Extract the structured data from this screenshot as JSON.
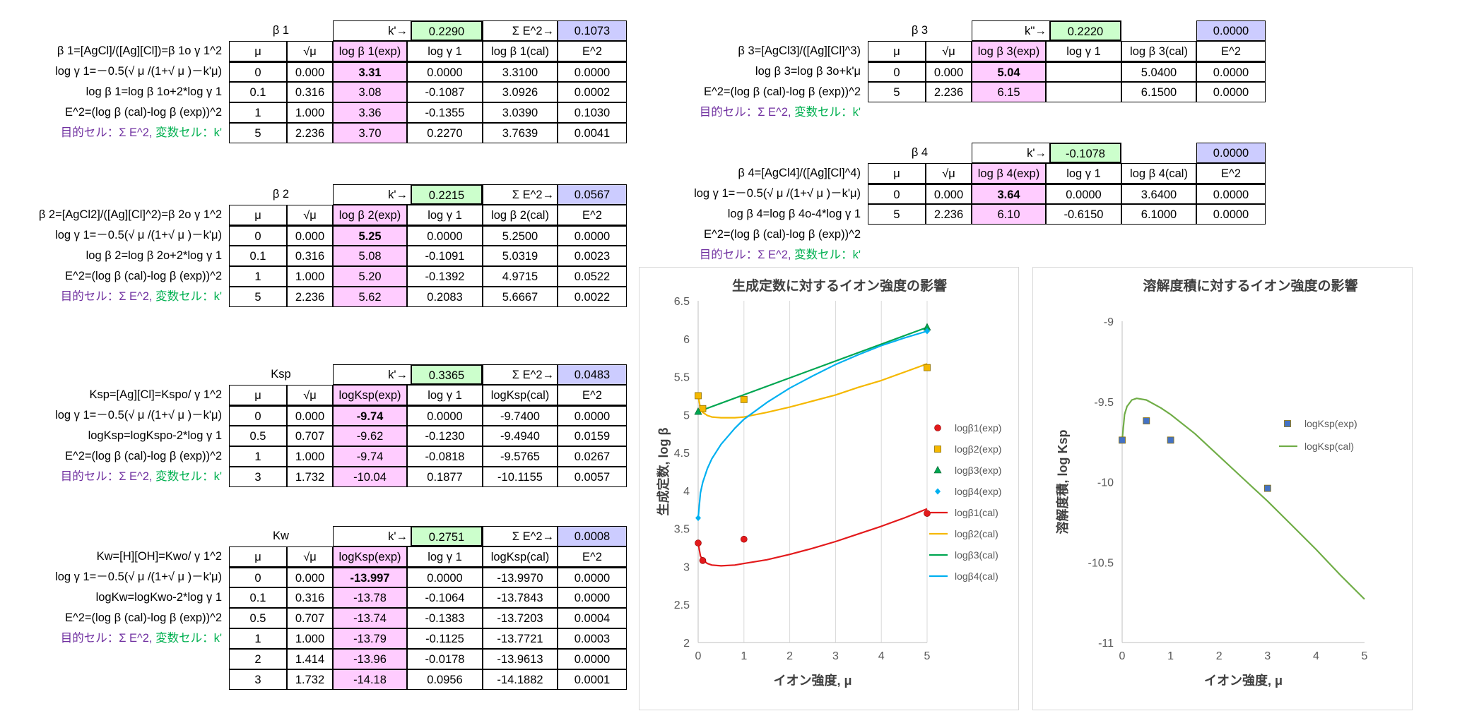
{
  "blocks": [
    {
      "id": "b1",
      "title": "β 1",
      "kprime_label": "k'→",
      "kprime_value": "0.2290",
      "sum_label": "Σ E^2→",
      "sum_value": "0.1073",
      "headers": [
        "μ",
        "√μ",
        "log β 1(exp)",
        "log γ 1",
        "log β 1(cal)",
        "E^2"
      ],
      "left_labels": [
        "β 1=[AgCl]/([Ag][Cl])=β 1o γ 1^2",
        "log γ 1=－0.5(√ μ /(1+√ μ )－k'μ)",
        "log β 1=log β 1o+2*log γ 1",
        "E^2=(log β (cal)-log β (exp))^2",
        "目的セル：Σ E^2, 変数セル：k'"
      ],
      "rows": [
        [
          "0",
          "0.000",
          "3.31",
          "0.0000",
          "3.3100",
          "0.0000"
        ],
        [
          "0.1",
          "0.316",
          "3.08",
          "-0.1087",
          "3.0926",
          "0.0002"
        ],
        [
          "1",
          "1.000",
          "3.36",
          "-0.1355",
          "3.0390",
          "0.1030"
        ],
        [
          "5",
          "2.236",
          "3.70",
          "0.2270",
          "3.7639",
          "0.0041"
        ]
      ]
    },
    {
      "id": "b2",
      "title": "β 2",
      "kprime_label": "k'→",
      "kprime_value": "0.2215",
      "sum_label": "Σ E^2→",
      "sum_value": "0.0567",
      "headers": [
        "μ",
        "√μ",
        "log β 2(exp)",
        "log γ 1",
        "log β 2(cal)",
        "E^2"
      ],
      "left_labels": [
        "β 2=[AgCl2]/([Ag][Cl]^2)=β 2o γ 1^2",
        "log γ 1=－0.5(√ μ /(1+√ μ )－k'μ)",
        "log β 2=log β 2o+2*log γ 1",
        "E^2=(log β (cal)-log β (exp))^2",
        "目的セル：Σ E^2, 変数セル：k'"
      ],
      "rows": [
        [
          "0",
          "0.000",
          "5.25",
          "0.0000",
          "5.2500",
          "0.0000"
        ],
        [
          "0.1",
          "0.316",
          "5.08",
          "-0.1091",
          "5.0319",
          "0.0023"
        ],
        [
          "1",
          "1.000",
          "5.20",
          "-0.1392",
          "4.9715",
          "0.0522"
        ],
        [
          "5",
          "2.236",
          "5.62",
          "0.2083",
          "5.6667",
          "0.0022"
        ]
      ]
    },
    {
      "id": "ksp",
      "title": "Ksp",
      "kprime_label": "k'→",
      "kprime_value": "0.3365",
      "sum_label": "Σ E^2→",
      "sum_value": "0.0483",
      "headers": [
        "μ",
        "√μ",
        "logKsp(exp)",
        "log γ 1",
        "logKsp(cal)",
        "E^2"
      ],
      "left_labels": [
        "Ksp=[Ag][Cl]=Kspo/ γ 1^2",
        "log γ 1=－0.5(√ μ /(1+√ μ )－k'μ)",
        "logKsp=logKspo-2*log γ 1",
        "E^2=(log β (cal)-log β (exp))^2",
        "目的セル：Σ E^2, 変数セル：k'"
      ],
      "rows": [
        [
          "0",
          "0.000",
          "-9.74",
          "0.0000",
          "-9.7400",
          "0.0000"
        ],
        [
          "0.5",
          "0.707",
          "-9.62",
          "-0.1230",
          "-9.4940",
          "0.0159"
        ],
        [
          "1",
          "1.000",
          "-9.74",
          "-0.0818",
          "-9.5765",
          "0.0267"
        ],
        [
          "3",
          "1.732",
          "-10.04",
          "0.1877",
          "-10.1155",
          "0.0057"
        ]
      ]
    },
    {
      "id": "kw",
      "title": "Kw",
      "kprime_label": "k'→",
      "kprime_value": "0.2751",
      "sum_label": "Σ E^2→",
      "sum_value": "0.0008",
      "headers": [
        "μ",
        "√μ",
        "logKsp(exp)",
        "log γ 1",
        "logKsp(cal)",
        "E^2"
      ],
      "left_labels": [
        "Kw=[H][OH]=Kwo/ γ 1^2",
        "log γ 1=－0.5(√ μ /(1+√ μ )－k'μ)",
        "logKw=logKwo-2*log γ 1",
        "E^2=(log β (cal)-log β (exp))^2",
        "目的セル：Σ E^2, 変数セル：k'"
      ],
      "rows": [
        [
          "0",
          "0.000",
          "-13.997",
          "0.0000",
          "-13.9970",
          "0.0000"
        ],
        [
          "0.1",
          "0.316",
          "-13.78",
          "-0.1064",
          "-13.7843",
          "0.0000"
        ],
        [
          "0.5",
          "0.707",
          "-13.74",
          "-0.1383",
          "-13.7203",
          "0.0004"
        ],
        [
          "1",
          "1.000",
          "-13.79",
          "-0.1125",
          "-13.7721",
          "0.0003"
        ],
        [
          "2",
          "1.414",
          "-13.96",
          "-0.0178",
          "-13.9613",
          "0.0000"
        ],
        [
          "3",
          "1.732",
          "-14.18",
          "0.0956",
          "-14.1882",
          "0.0001"
        ]
      ]
    },
    {
      "id": "b3",
      "title": "β 3",
      "kprime_label": "k''→",
      "kprime_value": "0.2220",
      "sum_label": "",
      "sum_value": "0.0000",
      "headers": [
        "μ",
        "√μ",
        "log β 3(exp)",
        "log γ 1",
        "log β 3(cal)",
        "E^2"
      ],
      "left_labels": [
        "β 3=[AgCl3]/([Ag][Cl]^3)",
        "log β 3=log β 3o+k'μ",
        "E^2=(log β (cal)-log β (exp))^2",
        "目的セル：Σ E^2, 変数セル：k'"
      ],
      "rows": [
        [
          "0",
          "0.000",
          "5.04",
          "",
          "5.0400",
          "0.0000"
        ],
        [
          "5",
          "2.236",
          "6.15",
          "",
          "6.1500",
          "0.0000"
        ]
      ]
    },
    {
      "id": "b4",
      "title": "β 4",
      "kprime_label": "k'→",
      "kprime_value": "-0.1078",
      "sum_label": "",
      "sum_value": "0.0000",
      "headers": [
        "μ",
        "√μ",
        "log β 4(exp)",
        "log γ 1",
        "log β 4(cal)",
        "E^2"
      ],
      "left_labels": [
        "β 4=[AgCl4]/([Ag][Cl]^4)",
        "log γ 1=－0.5(√ μ /(1+√ μ )－k'μ)",
        "log β 4=log β 4o-4*log γ 1",
        "E^2=(log β (cal)-log β (exp))^2",
        "目的セル：Σ E^2, 変数セル：k'"
      ],
      "rows": [
        [
          "0",
          "0.000",
          "3.64",
          "0.0000",
          "3.6400",
          "0.0000"
        ],
        [
          "5",
          "2.236",
          "6.10",
          "-0.6150",
          "6.1000",
          "0.0000"
        ]
      ]
    }
  ],
  "chart_data": [
    {
      "type": "scatter",
      "title": "生成定数に対するイオン強度の影響",
      "xlabel": "イオン強度, μ",
      "ylabel": "生成定数, log β",
      "xlim": [
        0,
        5
      ],
      "ylim": [
        2,
        6.5
      ],
      "xticks": [
        "0",
        "1",
        "2",
        "3",
        "4",
        "5"
      ],
      "yticks": [
        "2",
        "2.5",
        "3",
        "3.5",
        "4",
        "4.5",
        "5",
        "5.5",
        "6",
        "6.5"
      ],
      "grid": "vertical",
      "legend": "right",
      "series": [
        {
          "name": "logβ1(exp)",
          "kind": "marker",
          "marker": "circle",
          "color": "#e31a1c",
          "x": [
            0,
            0.1,
            1,
            5
          ],
          "y": [
            3.31,
            3.08,
            3.36,
            3.7
          ]
        },
        {
          "name": "logβ2(exp)",
          "kind": "marker",
          "marker": "square",
          "color": "#f5b800",
          "x": [
            0,
            0.1,
            1,
            5
          ],
          "y": [
            5.25,
            5.08,
            5.2,
            5.62
          ]
        },
        {
          "name": "logβ3(exp)",
          "kind": "marker",
          "marker": "triangle",
          "color": "#00a651",
          "x": [
            0,
            5
          ],
          "y": [
            5.04,
            6.15
          ]
        },
        {
          "name": "logβ4(exp)",
          "kind": "marker",
          "marker": "diamond",
          "color": "#00b0f0",
          "x": [
            0,
            5
          ],
          "y": [
            3.64,
            6.1
          ]
        },
        {
          "name": "logβ1(cal)",
          "kind": "line",
          "color": "#e31a1c",
          "x": [
            0,
            0.05,
            0.1,
            0.2,
            0.3,
            0.5,
            0.8,
            1,
            1.5,
            2,
            2.5,
            3,
            3.5,
            4,
            4.5,
            5
          ],
          "y": [
            3.31,
            3.14,
            3.09,
            3.04,
            3.02,
            3.01,
            3.02,
            3.04,
            3.09,
            3.16,
            3.24,
            3.33,
            3.43,
            3.53,
            3.64,
            3.76
          ]
        },
        {
          "name": "logβ2(cal)",
          "kind": "line",
          "color": "#f5b800",
          "x": [
            0,
            0.05,
            0.1,
            0.2,
            0.3,
            0.5,
            0.8,
            1,
            1.5,
            2,
            2.5,
            3,
            3.5,
            4,
            4.5,
            5
          ],
          "y": [
            5.25,
            5.08,
            5.03,
            4.99,
            4.97,
            4.96,
            4.96,
            4.97,
            5.03,
            5.1,
            5.18,
            5.26,
            5.36,
            5.45,
            5.56,
            5.67
          ]
        },
        {
          "name": "logβ3(cal)",
          "kind": "line",
          "color": "#00a651",
          "x": [
            0,
            5
          ],
          "y": [
            5.04,
            6.15
          ]
        },
        {
          "name": "logβ4(cal)",
          "kind": "line",
          "color": "#00b0f0",
          "x": [
            0,
            0.05,
            0.1,
            0.2,
            0.3,
            0.5,
            0.8,
            1,
            1.5,
            2,
            2.5,
            3,
            3.5,
            4,
            4.5,
            5
          ],
          "y": [
            3.64,
            3.97,
            4.11,
            4.29,
            4.42,
            4.61,
            4.82,
            4.94,
            5.16,
            5.35,
            5.51,
            5.66,
            5.79,
            5.91,
            6.01,
            6.1
          ]
        }
      ]
    },
    {
      "type": "scatter",
      "title": "溶解度積に対するイオン強度の影響",
      "xlabel": "イオン強度, μ",
      "ylabel": "溶解度積, log Ksp",
      "xlim": [
        0,
        5
      ],
      "ylim": [
        -11,
        -9
      ],
      "xticks": [
        "0",
        "1",
        "2",
        "3",
        "4",
        "5"
      ],
      "yticks": [
        "-11",
        "-10.5",
        "-10",
        "-9.5",
        "-9"
      ],
      "grid": "none",
      "legend": "right",
      "series": [
        {
          "name": "logKsp(exp)",
          "kind": "marker",
          "marker": "square",
          "color": "#4472c4",
          "x": [
            0,
            0.5,
            1,
            3
          ],
          "y": [
            -9.74,
            -9.62,
            -9.74,
            -10.04
          ]
        },
        {
          "name": "logKsp(cal)",
          "kind": "line",
          "color": "#70ad47",
          "x": [
            0,
            0.05,
            0.1,
            0.2,
            0.3,
            0.5,
            0.8,
            1,
            1.5,
            2,
            2.5,
            3,
            3.5,
            4,
            4.5,
            5
          ],
          "y": [
            -9.74,
            -9.58,
            -9.53,
            -9.49,
            -9.48,
            -9.49,
            -9.54,
            -9.58,
            -9.7,
            -9.84,
            -9.98,
            -10.12,
            -10.27,
            -10.42,
            -10.58,
            -10.73
          ]
        }
      ]
    }
  ]
}
